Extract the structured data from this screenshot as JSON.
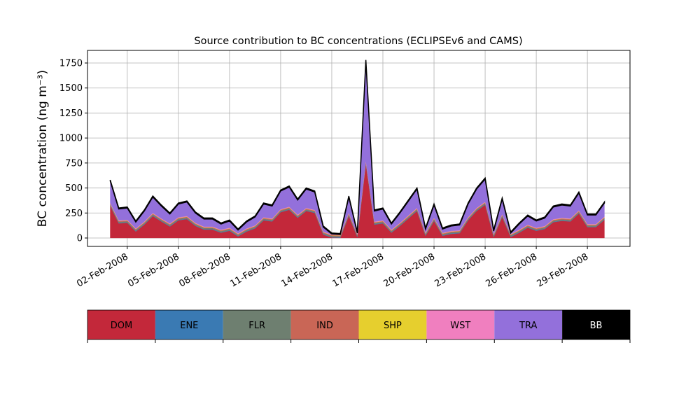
{
  "chart_data": {
    "type": "stacked_area",
    "title": "Source contribution to BC concentrations (ECLIPSEv6 and CAMS)",
    "y_label": "BC concentration (ng m⁻³)",
    "grid": true,
    "x": [
      "2008-02-01T00:00",
      "2008-02-01T12:00",
      "2008-02-02T00:00",
      "2008-02-02T12:00",
      "2008-02-03T00:00",
      "2008-02-03T12:00",
      "2008-02-04T00:00",
      "2008-02-04T12:00",
      "2008-02-05T00:00",
      "2008-02-05T12:00",
      "2008-02-06T00:00",
      "2008-02-06T12:00",
      "2008-02-07T00:00",
      "2008-02-07T12:00",
      "2008-02-08T00:00",
      "2008-02-08T12:00",
      "2008-02-09T00:00",
      "2008-02-09T12:00",
      "2008-02-10T00:00",
      "2008-02-10T12:00",
      "2008-02-11T00:00",
      "2008-02-11T12:00",
      "2008-02-12T00:00",
      "2008-02-12T12:00",
      "2008-02-13T00:00",
      "2008-02-13T12:00",
      "2008-02-14T00:00",
      "2008-02-14T12:00",
      "2008-02-15T00:00",
      "2008-02-15T12:00",
      "2008-02-16T00:00",
      "2008-02-16T12:00",
      "2008-02-17T00:00",
      "2008-02-17T12:00",
      "2008-02-18T00:00",
      "2008-02-18T12:00",
      "2008-02-19T00:00",
      "2008-02-19T12:00",
      "2008-02-20T00:00",
      "2008-02-20T12:00",
      "2008-02-21T00:00",
      "2008-02-21T12:00",
      "2008-02-22T00:00",
      "2008-02-22T12:00",
      "2008-02-23T00:00",
      "2008-02-23T12:00",
      "2008-02-24T00:00",
      "2008-02-24T12:00",
      "2008-02-25T00:00",
      "2008-02-25T12:00",
      "2008-02-26T00:00",
      "2008-02-26T12:00",
      "2008-02-27T00:00",
      "2008-02-27T12:00",
      "2008-02-28T00:00",
      "2008-02-28T12:00",
      "2008-02-29T00:00",
      "2008-02-29T12:00",
      "2008-03-01T00:00"
    ],
    "xlim": [
      "2008-01-30T16:00",
      "2008-03-02T12:00"
    ],
    "xticks": [
      {
        "value": "2008-02-02T00:00",
        "label": "02-Feb-2008"
      },
      {
        "value": "2008-02-05T00:00",
        "label": "05-Feb-2008"
      },
      {
        "value": "2008-02-08T00:00",
        "label": "08-Feb-2008"
      },
      {
        "value": "2008-02-11T00:00",
        "label": "11-Feb-2008"
      },
      {
        "value": "2008-02-14T00:00",
        "label": "14-Feb-2008"
      },
      {
        "value": "2008-02-17T00:00",
        "label": "17-Feb-2008"
      },
      {
        "value": "2008-02-20T00:00",
        "label": "20-Feb-2008"
      },
      {
        "value": "2008-02-23T00:00",
        "label": "23-Feb-2008"
      },
      {
        "value": "2008-02-26T00:00",
        "label": "26-Feb-2008"
      },
      {
        "value": "2008-02-29T00:00",
        "label": "29-Feb-2008"
      }
    ],
    "ylim": [
      -84,
      1876
    ],
    "yticks": [
      0,
      250,
      500,
      750,
      1000,
      1250,
      1500,
      1750
    ],
    "series": [
      {
        "name": "DOM",
        "color": "#c3283a",
        "values": [
          320,
          146,
          152,
          65,
          134,
          220,
          165,
          115,
          177,
          189,
          121,
          84,
          84,
          53,
          72,
          16,
          65,
          96,
          177,
          165,
          258,
          282,
          202,
          270,
          251,
          34,
          5,
          2,
          220,
          10,
          740,
          134,
          146,
          53,
          121,
          196,
          270,
          22,
          171,
          22,
          41,
          47,
          177,
          270,
          332,
          10,
          208,
          10,
          53,
          103,
          72,
          90,
          158,
          171,
          165,
          245,
          109,
          109,
          183
        ]
      },
      {
        "name": "ENE",
        "color": "#3a7ab3",
        "values": [
          5,
          5,
          5,
          5,
          5,
          5,
          5,
          5,
          5,
          5,
          5,
          5,
          5,
          5,
          5,
          5,
          5,
          5,
          5,
          5,
          5,
          5,
          5,
          5,
          5,
          5,
          5,
          5,
          5,
          5,
          5,
          5,
          5,
          5,
          5,
          5,
          5,
          5,
          5,
          5,
          5,
          5,
          5,
          5,
          5,
          5,
          5,
          5,
          5,
          5,
          5,
          5,
          5,
          5,
          5,
          5,
          5,
          5,
          5
        ]
      },
      {
        "name": "FLR",
        "color": "#6e7f70",
        "values": [
          10,
          10,
          10,
          10,
          10,
          10,
          10,
          10,
          10,
          10,
          10,
          10,
          10,
          10,
          10,
          10,
          10,
          10,
          10,
          10,
          10,
          10,
          10,
          10,
          10,
          10,
          10,
          10,
          10,
          10,
          10,
          10,
          10,
          10,
          10,
          10,
          10,
          10,
          10,
          10,
          10,
          10,
          10,
          10,
          10,
          10,
          10,
          10,
          10,
          10,
          10,
          10,
          10,
          10,
          10,
          10,
          10,
          10,
          10
        ]
      },
      {
        "name": "IND",
        "color": "#c96656",
        "values": [
          8,
          8,
          8,
          8,
          8,
          8,
          8,
          8,
          8,
          8,
          8,
          8,
          8,
          8,
          8,
          8,
          8,
          8,
          8,
          8,
          8,
          8,
          8,
          8,
          8,
          8,
          8,
          8,
          8,
          8,
          8,
          8,
          8,
          8,
          8,
          8,
          8,
          8,
          8,
          8,
          8,
          8,
          8,
          8,
          8,
          8,
          8,
          8,
          8,
          8,
          8,
          8,
          8,
          8,
          8,
          8,
          8,
          8,
          8
        ]
      },
      {
        "name": "SHP",
        "color": "#e6cf2e",
        "values": [
          2,
          2,
          2,
          2,
          2,
          2,
          2,
          2,
          2,
          2,
          2,
          2,
          2,
          2,
          2,
          2,
          2,
          2,
          2,
          2,
          2,
          2,
          2,
          2,
          2,
          2,
          2,
          2,
          2,
          2,
          2,
          2,
          2,
          2,
          2,
          2,
          2,
          2,
          2,
          2,
          2,
          2,
          2,
          2,
          2,
          2,
          2,
          2,
          2,
          2,
          2,
          2,
          2,
          2,
          2,
          2,
          2,
          2,
          2
        ]
      },
      {
        "name": "WST",
        "color": "#f07fbf",
        "values": [
          5,
          5,
          5,
          5,
          5,
          5,
          5,
          5,
          5,
          5,
          5,
          5,
          5,
          5,
          5,
          5,
          5,
          5,
          5,
          5,
          5,
          5,
          5,
          5,
          5,
          5,
          5,
          5,
          5,
          5,
          5,
          5,
          5,
          5,
          5,
          5,
          5,
          5,
          5,
          5,
          5,
          5,
          5,
          5,
          5,
          5,
          5,
          5,
          5,
          5,
          5,
          5,
          5,
          5,
          5,
          5,
          5,
          5,
          5
        ]
      },
      {
        "name": "TRA",
        "color": "#9370db",
        "values": [
          220,
          114,
          118,
          65,
          106,
          160,
          125,
          95,
          133,
          141,
          99,
          76,
          76,
          57,
          68,
          34,
          65,
          84,
          133,
          125,
          182,
          198,
          148,
          190,
          179,
          46,
          5,
          3,
          160,
          10,
          1000,
          106,
          114,
          57,
          99,
          144,
          190,
          38,
          129,
          38,
          49,
          53,
          133,
          190,
          228,
          30,
          152,
          10,
          57,
          87,
          68,
          80,
          122,
          129,
          125,
          175,
          91,
          91,
          137
        ]
      },
      {
        "name": "BB",
        "color": "#000000",
        "values": [
          10,
          10,
          10,
          10,
          10,
          10,
          10,
          10,
          10,
          10,
          10,
          10,
          10,
          10,
          10,
          10,
          10,
          10,
          10,
          10,
          10,
          10,
          10,
          10,
          10,
          10,
          10,
          10,
          10,
          10,
          10,
          10,
          10,
          10,
          10,
          10,
          10,
          10,
          10,
          10,
          10,
          10,
          10,
          10,
          10,
          10,
          10,
          10,
          10,
          10,
          10,
          10,
          10,
          10,
          10,
          10,
          10,
          10,
          10
        ]
      }
    ]
  }
}
